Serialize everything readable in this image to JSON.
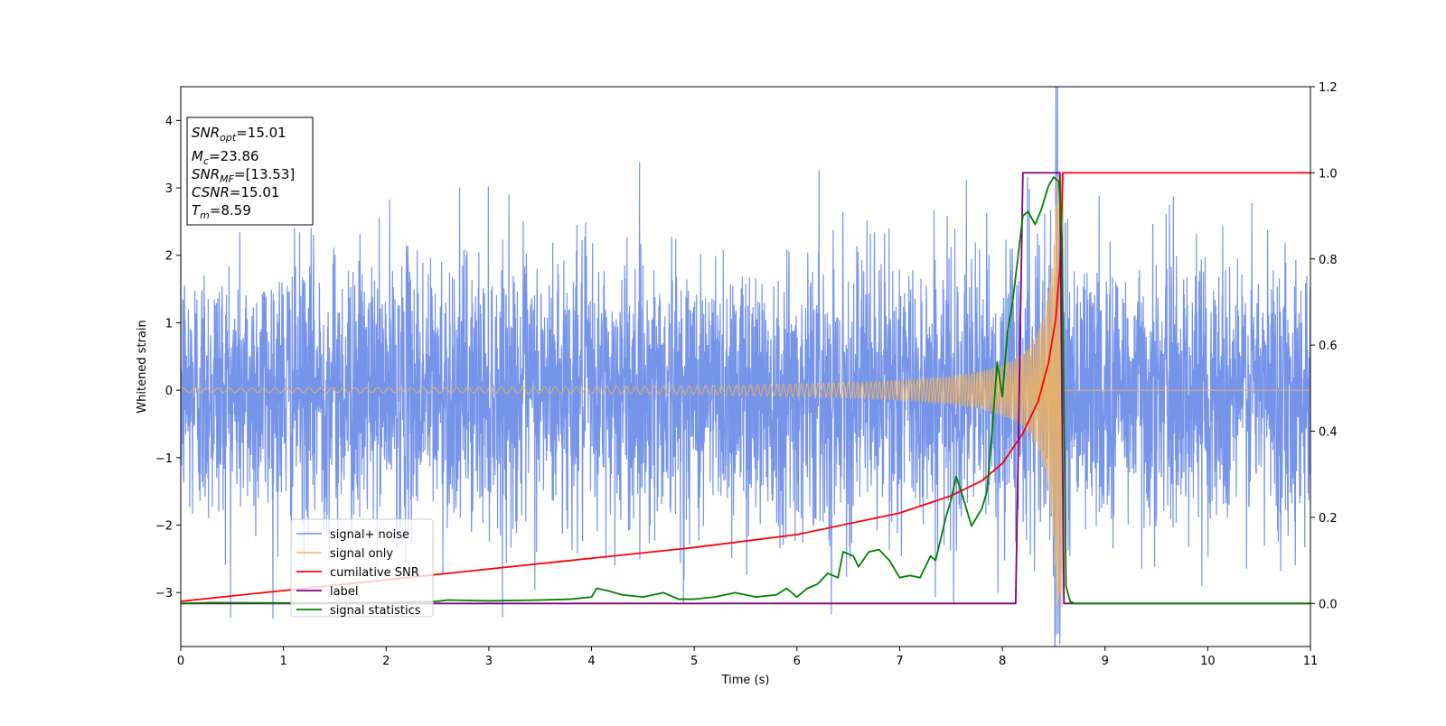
{
  "chart_data": {
    "type": "line",
    "xlabel": "Time (s)",
    "ylabel": "Whitened strain",
    "xlim": [
      0,
      11
    ],
    "ylim_left": [
      -3.8,
      4.5
    ],
    "ylim_right": [
      -0.1,
      1.2
    ],
    "x_ticks": [
      "0",
      "1",
      "2",
      "3",
      "4",
      "5",
      "6",
      "7",
      "8",
      "9",
      "10",
      "11"
    ],
    "y_left_ticks": [
      "−3",
      "−2",
      "−1",
      "0",
      "1",
      "2",
      "3",
      "4"
    ],
    "y_right_ticks": [
      "0.0",
      "0.2",
      "0.4",
      "0.6",
      "0.8",
      "1.0",
      "1.2"
    ],
    "grid": false,
    "info_box": {
      "snr_opt": {
        "main": "SNR",
        "sub": "opt",
        "value": "=15.01"
      },
      "mc": {
        "main": "M",
        "sub": "c",
        "value": "=23.86"
      },
      "snr_mf": {
        "main": "SNR",
        "sub": "MF",
        "value": "=[13.53]"
      },
      "csnr": {
        "main": "CSNR",
        "value": "=15.01"
      },
      "tm": {
        "main": "T",
        "sub": "m",
        "value": "=8.59"
      }
    },
    "legend_position": "lower-left",
    "series": [
      {
        "name": "signal+ noise",
        "axis": "left",
        "color": "#6f8ee8",
        "description": "whitened noise plus signal, std about 1.0, envelope roughly -3.4 to 3.6, signal merged near t=8.59",
        "noise_std": 1.0
      },
      {
        "name": "signal only",
        "axis": "left",
        "color": "#f2b45a",
        "chirp": {
          "t_merger": 8.59,
          "amp_start": 0.03,
          "amp_peak": 3.25,
          "f_start": 9,
          "f_end": 60
        }
      },
      {
        "name": "cumilative SNR",
        "axis": "right",
        "color": "#ff0000",
        "x": [
          0,
          1,
          2,
          3,
          4,
          5,
          6,
          7,
          7.5,
          7.8,
          8.0,
          8.2,
          8.35,
          8.45,
          8.52,
          8.56,
          8.59,
          8.6,
          11
        ],
        "values": [
          0.005,
          0.03,
          0.055,
          0.08,
          0.105,
          0.13,
          0.16,
          0.21,
          0.25,
          0.285,
          0.325,
          0.395,
          0.47,
          0.56,
          0.66,
          0.78,
          1.0,
          1.0,
          1.0
        ]
      },
      {
        "name": "label",
        "axis": "right",
        "color": "#800080",
        "x": [
          0,
          8.13,
          8.2,
          8.56,
          8.6,
          11
        ],
        "values": [
          0,
          0,
          1,
          1,
          0,
          0
        ]
      },
      {
        "name": "signal statistics",
        "axis": "right",
        "color": "#008000",
        "x": [
          0,
          0.3,
          1,
          2,
          2.5,
          2.6,
          3,
          3.5,
          3.8,
          4,
          4.05,
          4.15,
          4.3,
          4.5,
          4.7,
          4.85,
          5,
          5.2,
          5.4,
          5.6,
          5.8,
          5.9,
          6.0,
          6.1,
          6.2,
          6.3,
          6.4,
          6.45,
          6.55,
          6.6,
          6.7,
          6.8,
          6.9,
          7.0,
          7.1,
          7.2,
          7.3,
          7.35,
          7.45,
          7.5,
          7.55,
          7.6,
          7.7,
          7.75,
          7.8,
          7.85,
          7.9,
          7.95,
          8.0,
          8.05,
          8.1,
          8.2,
          8.25,
          8.32,
          8.38,
          8.45,
          8.5,
          8.55,
          8.58,
          8.62,
          8.66,
          8.7,
          9,
          10,
          11
        ],
        "values": [
          0,
          0.002,
          0.001,
          0.002,
          0.005,
          0.008,
          0.006,
          0.008,
          0.01,
          0.015,
          0.035,
          0.03,
          0.02,
          0.015,
          0.025,
          0.01,
          0.01,
          0.015,
          0.025,
          0.015,
          0.02,
          0.035,
          0.015,
          0.035,
          0.045,
          0.07,
          0.06,
          0.12,
          0.11,
          0.085,
          0.12,
          0.125,
          0.1,
          0.06,
          0.065,
          0.06,
          0.11,
          0.1,
          0.2,
          0.24,
          0.295,
          0.26,
          0.18,
          0.2,
          0.22,
          0.26,
          0.4,
          0.56,
          0.48,
          0.63,
          0.7,
          0.9,
          0.91,
          0.88,
          0.915,
          0.97,
          0.99,
          0.98,
          0.85,
          0.04,
          0.005,
          0,
          0,
          0,
          0
        ]
      }
    ]
  }
}
